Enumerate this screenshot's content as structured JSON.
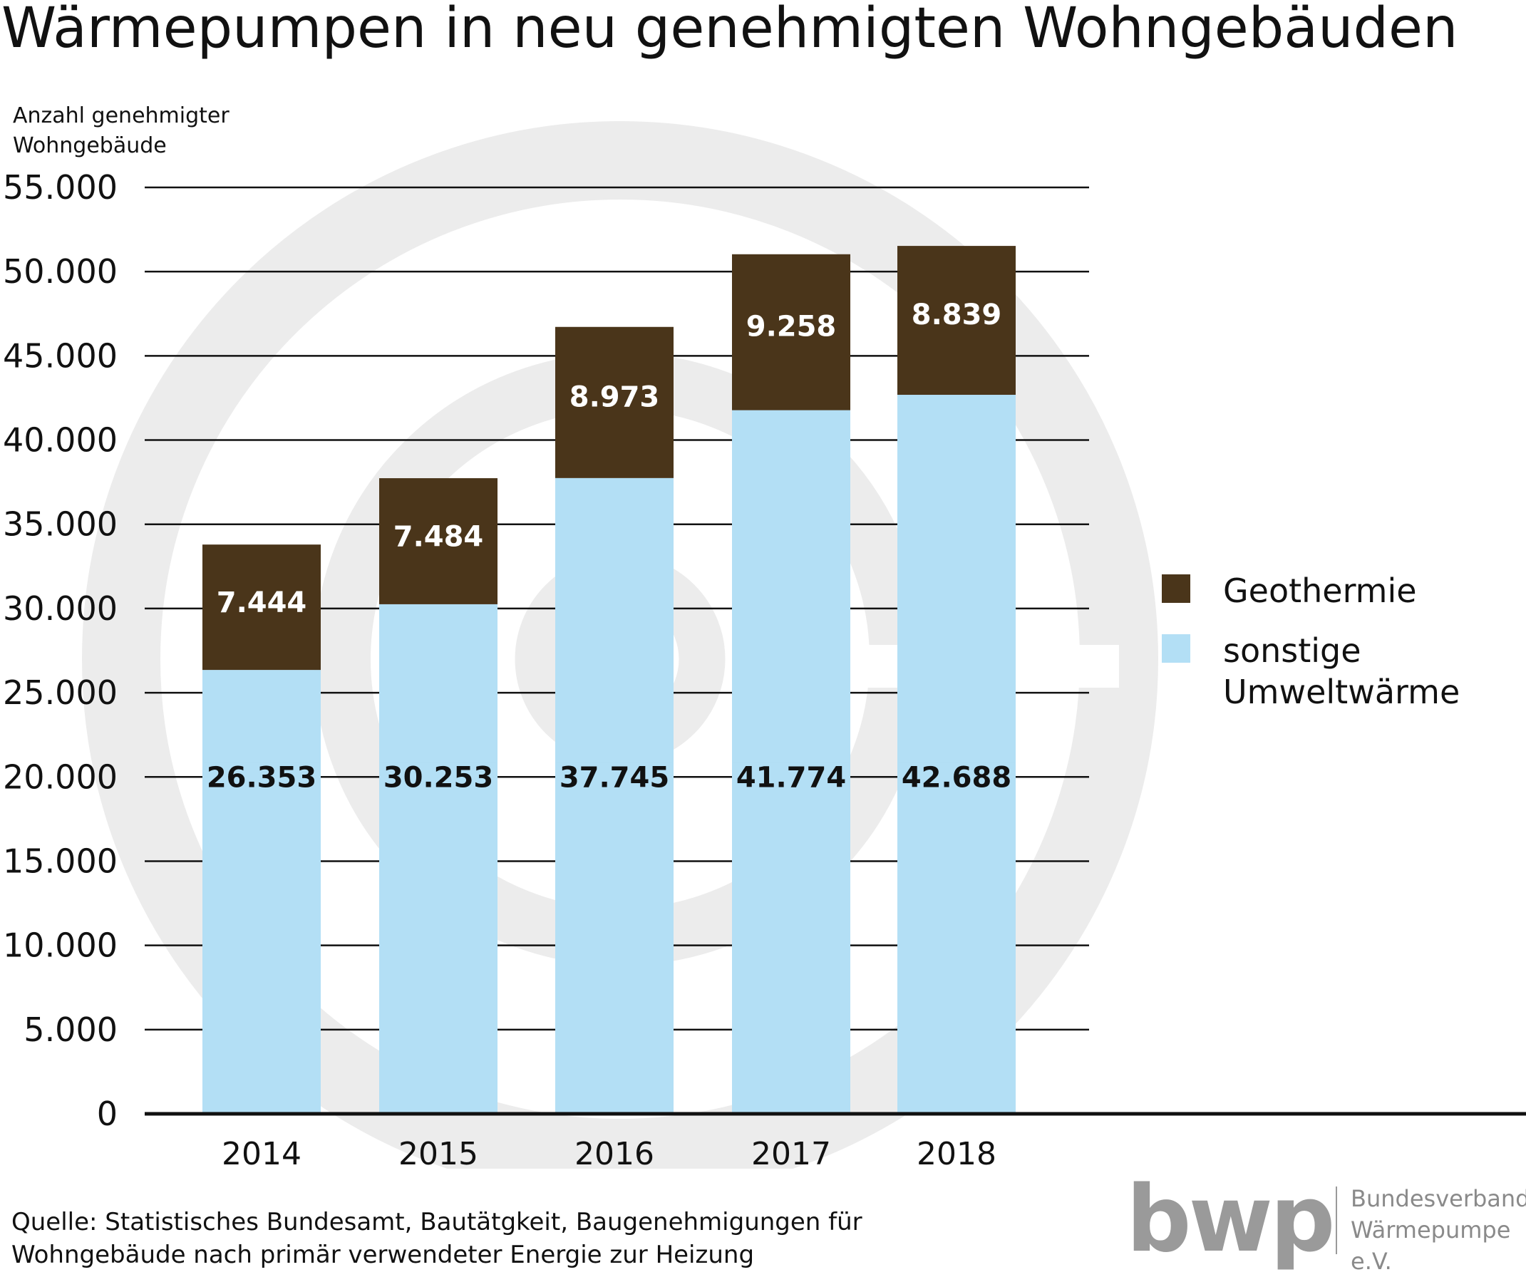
{
  "title": "Wärmepumpen in neu genehmigten Wohngebäuden",
  "source": "Quelle: Statistisches Bundesamt, Bautätgkeit, Baugenehmigungen für\nWohngebäude nach primär verwendeter Energie zur Heizung",
  "logo": {
    "wordmark": "bwp",
    "org": "Bundesverband\nWärmepumpe e.V."
  },
  "colors": {
    "geothermie": "#4a351a",
    "umwelt": "#b3dff5",
    "grid": "#111111",
    "watermark": "#ececec"
  },
  "chart_data": {
    "type": "bar",
    "stacked": true,
    "title": "Wärmepumpen in neu genehmigten Wohngebäuden",
    "ylabel": "Anzahl genehmigter\nWohngebäude",
    "xlabel": "",
    "categories": [
      "2014",
      "2015",
      "2016",
      "2017",
      "2018"
    ],
    "ylim": [
      0,
      55000
    ],
    "yticks": [
      0,
      5000,
      10000,
      15000,
      20000,
      25000,
      30000,
      35000,
      40000,
      45000,
      50000,
      55000
    ],
    "ytick_labels": [
      "0",
      "5.000",
      "10.000",
      "15.000",
      "20.000",
      "25.000",
      "30.000",
      "35.000",
      "40.000",
      "45.000",
      "50.000",
      "55.000"
    ],
    "grid": true,
    "legend_position": "right",
    "series": [
      {
        "name": "sonstige\nUmweltwärme",
        "values": [
          26353,
          30253,
          37745,
          41774,
          42688
        ],
        "labels": [
          "26.353",
          "30.253",
          "37.745",
          "41.774",
          "42.688"
        ]
      },
      {
        "name": "Geothermie",
        "values": [
          7444,
          7484,
          8973,
          9258,
          8839
        ],
        "labels": [
          "7.444",
          "7.484",
          "8.973",
          "9.258",
          "8.839"
        ]
      }
    ]
  }
}
